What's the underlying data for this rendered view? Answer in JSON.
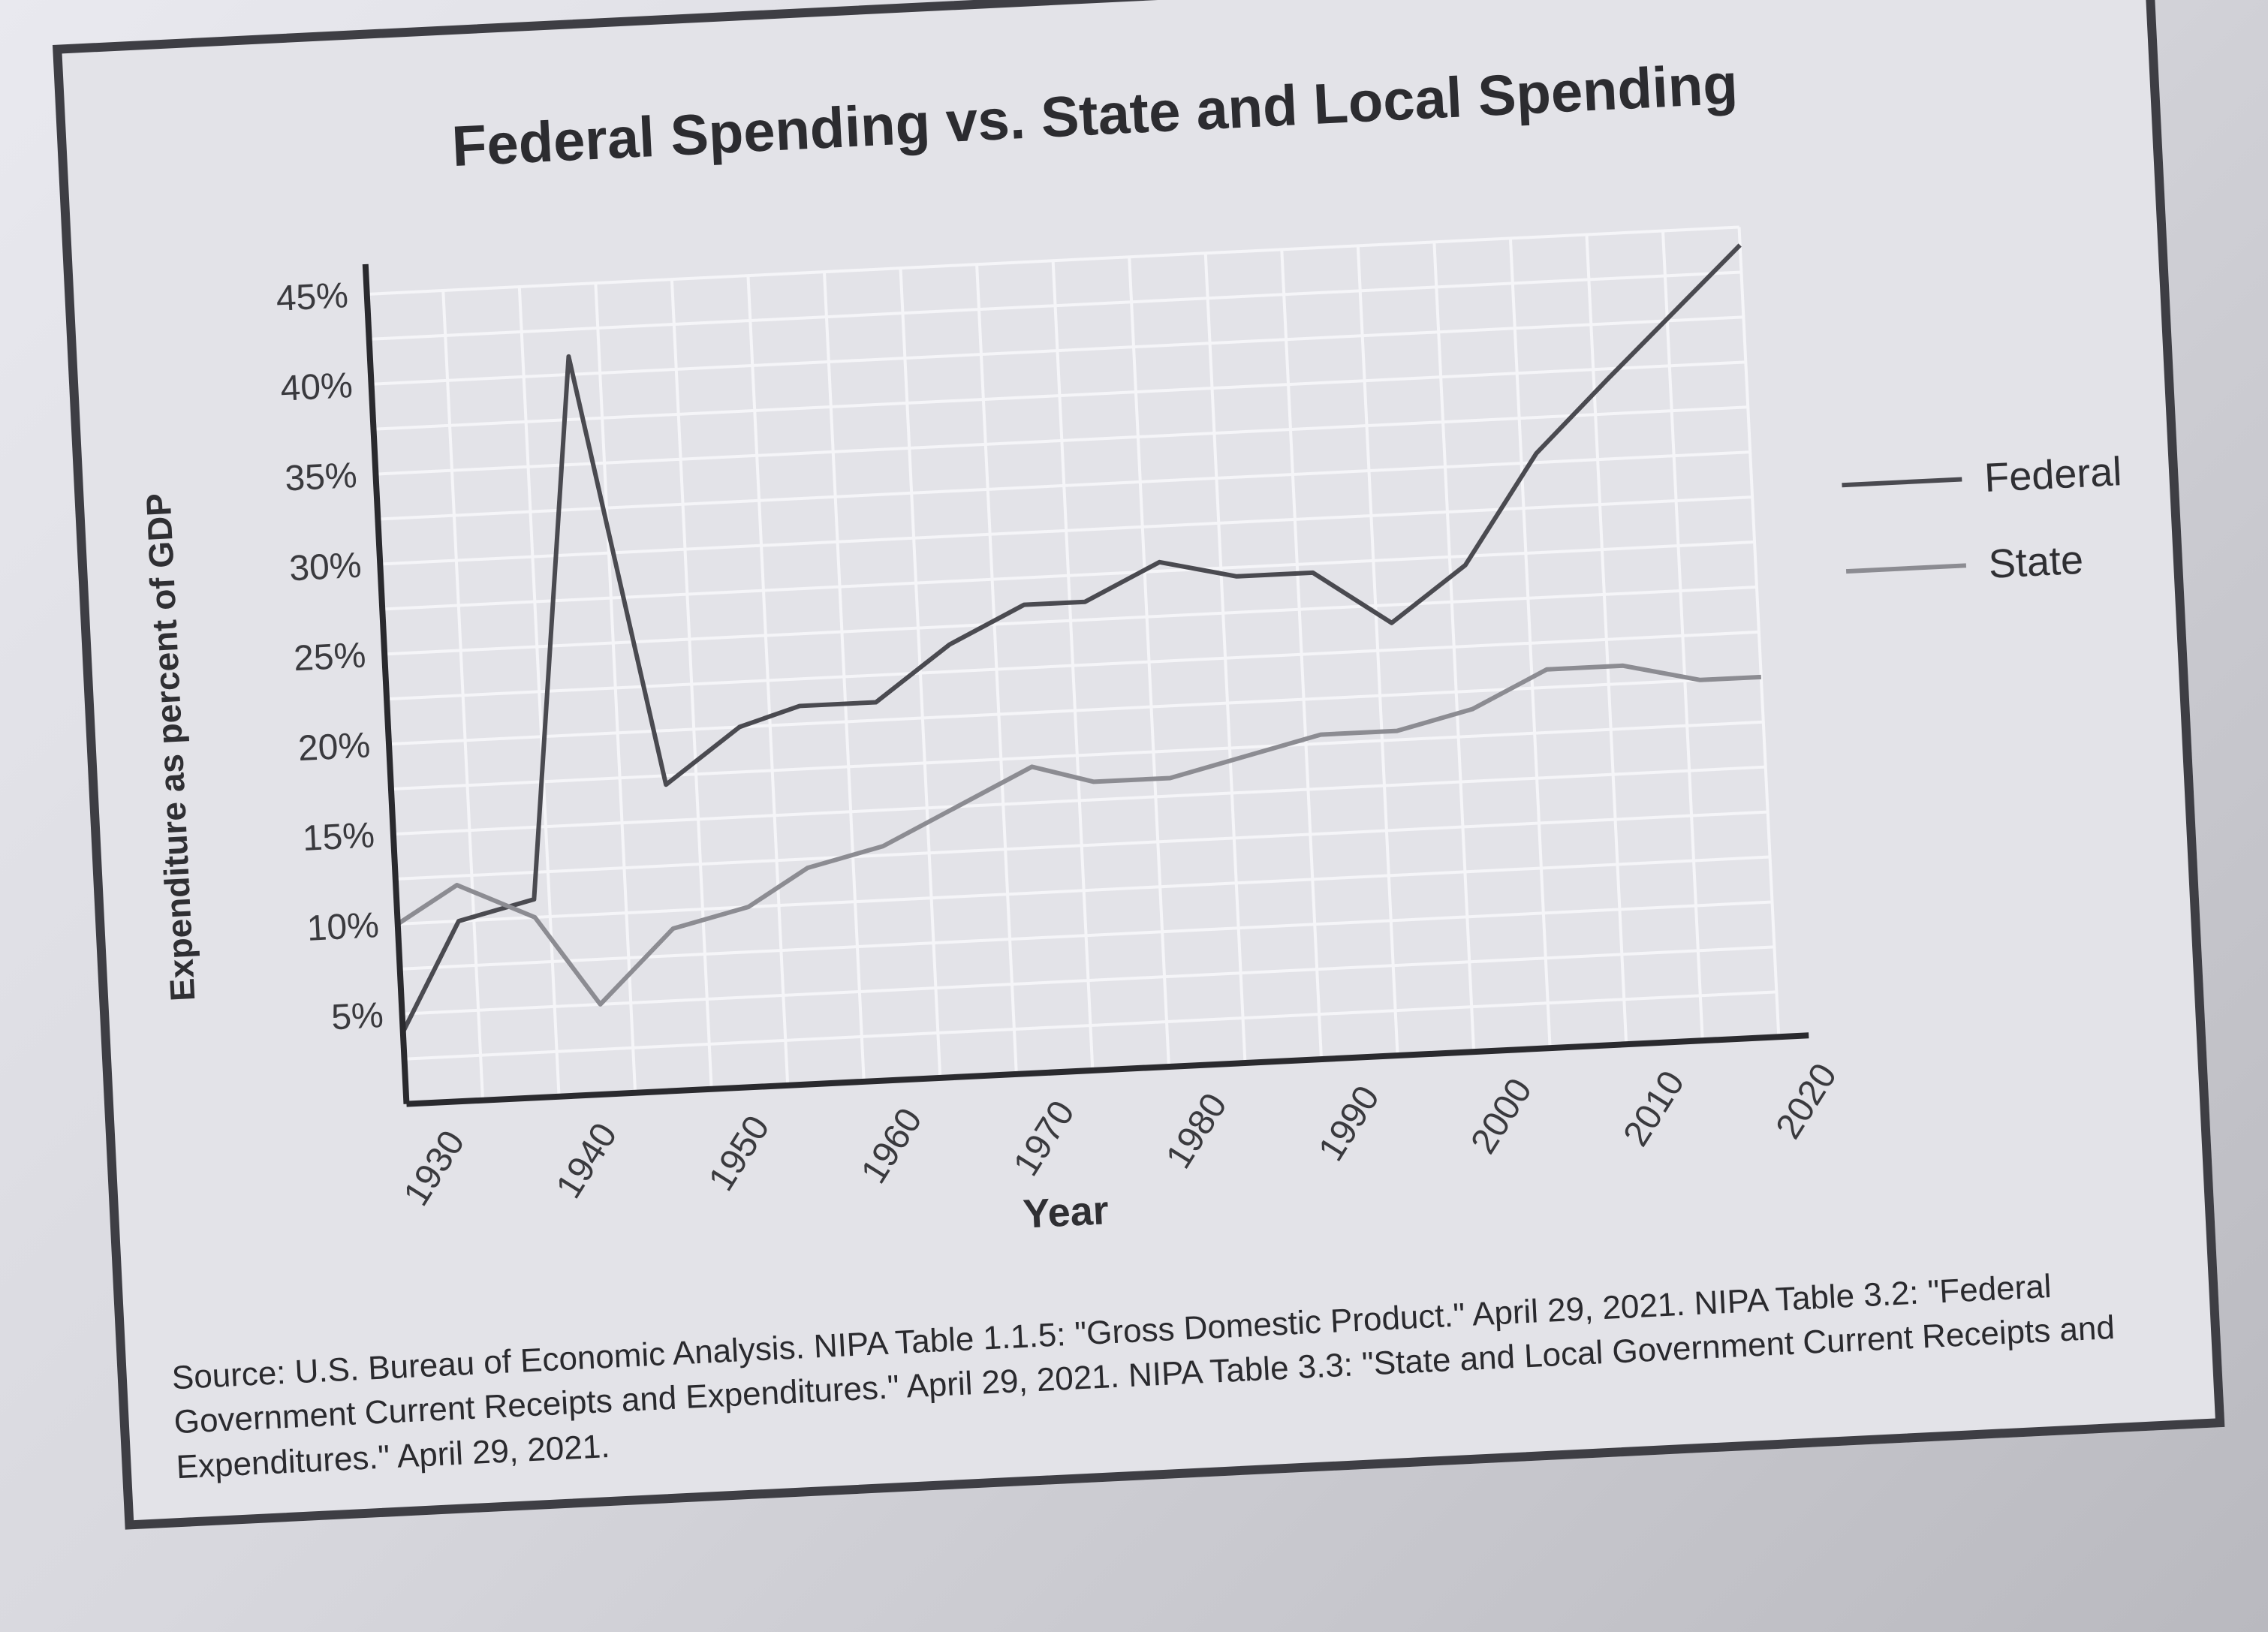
{
  "chart_data": {
    "type": "line",
    "title": "Federal Spending vs. State and Local Spending",
    "xlabel": "Year",
    "ylabel": "Expenditure as percent of GDP",
    "xlim": [
      1930,
      2020
    ],
    "ylim": [
      0,
      45
    ],
    "x_ticks": [
      "1930",
      "1940",
      "1950",
      "1960",
      "1970",
      "1980",
      "1990",
      "2000",
      "2010",
      "2020"
    ],
    "y_ticks": [
      "5%",
      "10%",
      "15%",
      "20%",
      "25%",
      "30%",
      "35%",
      "40%",
      "45%"
    ],
    "grid": true,
    "legend_position": "right",
    "series": [
      {
        "name": "Federal",
        "color": "#4a4a50",
        "x": [
          1930,
          1934,
          1939,
          1943,
          1948,
          1953,
          1957,
          1962,
          1967,
          1972,
          1976,
          1981,
          1986,
          1991,
          1996,
          2001,
          2006,
          2011,
          2020
        ],
        "y": [
          4,
          10,
          11,
          41,
          17,
          20,
          21,
          21,
          24,
          26,
          26,
          28,
          27,
          27,
          24,
          27,
          33,
          37,
          44
        ]
      },
      {
        "name": "State",
        "color": "#8c8c92",
        "x": [
          1930,
          1934,
          1939,
          1943,
          1948,
          1953,
          1957,
          1962,
          1967,
          1972,
          1976,
          1981,
          1986,
          1991,
          1996,
          2001,
          2006,
          2011,
          2016,
          2020
        ],
        "y": [
          10,
          12,
          10,
          5,
          9,
          10,
          12,
          13,
          15,
          17,
          16,
          16,
          17,
          18,
          18,
          19,
          21,
          21,
          20,
          20
        ]
      }
    ],
    "source": "Source: U.S. Bureau of Economic Analysis. NIPA Table 1.1.5: \"Gross Domestic Product.\" April 29, 2021. NIPA Table 3.2: \"Federal Government Current Receipts and Expenditures.\" April 29, 2021. NIPA Table 3.3: \"State and Local Government Current Receipts and Expenditures.\" April 29, 2021."
  }
}
